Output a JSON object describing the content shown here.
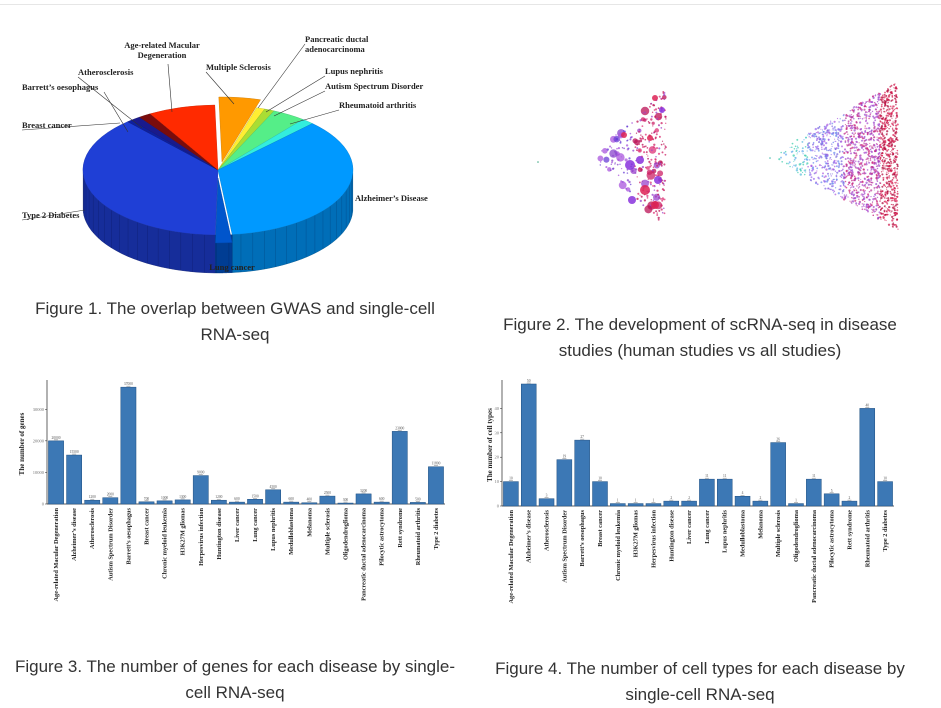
{
  "captions": {
    "fig1": "Figure 1. The overlap between GWAS and single-cell RNA-seq",
    "fig2": "Figure 2. The development of scRNA-seq in disease studies (human studies vs all studies)",
    "fig3": "Figure 3. The number of genes for each disease by single-cell RNA-seq",
    "fig4": "Figure 4. The number of cell types for each disease by single-cell RNA-seq"
  },
  "chart_data": [
    {
      "type": "pie",
      "labels": [
        "Type 2 Diabetes",
        "Breast cancer",
        "Barrett’s oesophagus",
        "Atherosclerosis",
        "Age-related Macular Degeneration",
        "Multiple Sclerosis",
        "Pancreatic ductal adenocarcinoma",
        "Lupus nephritis",
        "Autism Spectrum Disorder",
        "Rheumatoid arthritis",
        "Alzheimer’s Disease",
        "Lung cancer"
      ],
      "values": [
        38,
        0.6,
        1.2,
        1.5,
        8,
        5,
        1,
        1.2,
        4,
        1.5,
        36,
        2
      ],
      "colors": [
        "#1f3fd6",
        "#0e1f9e",
        "#1a1a8c",
        "#7a0c0c",
        "#ff2a00",
        "#ff9900",
        "#ffee33",
        "#aadd33",
        "#55ee88",
        "#33eedd",
        "#0099ff",
        "#0055cc"
      ]
    },
    {
      "type": "scatter",
      "panels": [
        "human studies",
        "all studies"
      ]
    },
    {
      "type": "bar",
      "ylabel": "The number of genes",
      "categories": [
        "Age-related Macular Degeneration",
        "Alzheimer’s disease",
        "Atherosclerosis",
        "Autism Spectrum Disorder",
        "Barrett’s oesophagus",
        "Breast cancer",
        "Chronic myeloid leukemia",
        "H3K27M gliomas",
        "Herpesvirus infection",
        "Huntington disease",
        "Liver cancer",
        "Lung cancer",
        "Lupus nephritis",
        "Medulloblastoma",
        "Melanoma",
        "Multiple sclerosis",
        "Oligodendroglioma",
        "Pancreatic ductal adenocarcinoma",
        "Pilocytic astrocytoma",
        "Rett syndrome",
        "Rheumatoid arthritis",
        "Type 2 diabetes"
      ],
      "values": [
        20000,
        15500,
        1200,
        2000,
        37000,
        700,
        1000,
        1300,
        9000,
        1200,
        600,
        1500,
        4500,
        600,
        400,
        2500,
        300,
        3200,
        600,
        23000,
        500,
        11800
      ],
      "ylim": [
        0,
        38000
      ],
      "yticks": [
        0,
        10000,
        20000,
        30000
      ]
    },
    {
      "type": "bar",
      "ylabel": "The number of cell types",
      "categories": [
        "Age-related Macular Degeneration",
        "Alzheimer’s disease",
        "Atherosclerosis",
        "Autism Spectrum Disorder",
        "Barrett’s oesophagus",
        "Breast cancer",
        "Chronic myeloid leukemia",
        "H3K27M gliomas",
        "Herpesvirus infection",
        "Huntington disease",
        "Liver cancer",
        "Lung cancer",
        "Lupus nephritis",
        "Medulloblastoma",
        "Melanoma",
        "Multiple sclerosis",
        "Oligodendroglioma",
        "Pancreatic ductal adenocarcinoma",
        "Pilocytic astrocytoma",
        "Rett syndrome",
        "Rheumatoid arthritis",
        "Type 2 diabetes"
      ],
      "values": [
        10,
        50,
        3,
        19,
        27,
        10,
        1,
        1,
        1,
        2,
        2,
        11,
        11,
        4,
        2,
        26,
        1,
        11,
        5,
        2,
        40,
        10
      ],
      "ylim": [
        0,
        50
      ],
      "yticks": [
        0,
        10,
        20,
        30,
        40
      ]
    }
  ]
}
